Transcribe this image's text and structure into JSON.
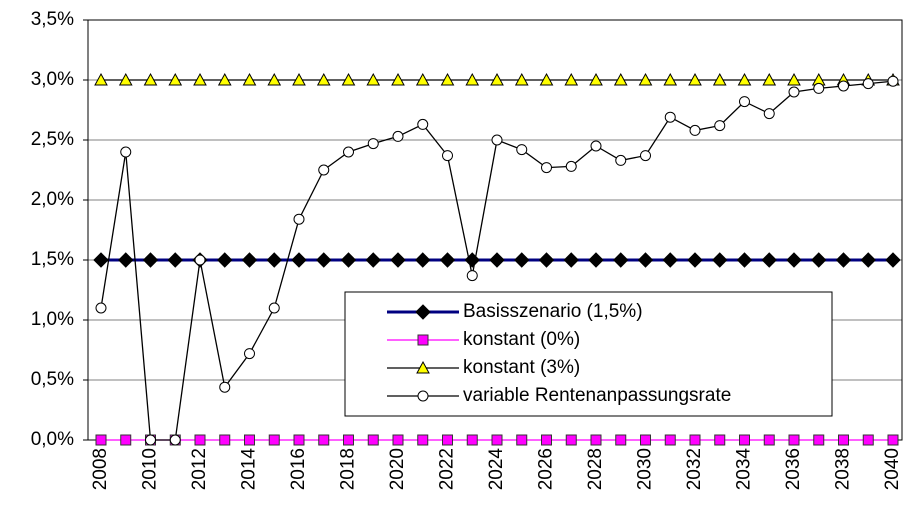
{
  "chart_data": {
    "type": "line",
    "categories": [
      "2008",
      null,
      "2010",
      null,
      "2012",
      null,
      "2014",
      null,
      "2016",
      null,
      "2018",
      null,
      "2020",
      null,
      "2022",
      null,
      "2024",
      null,
      "2026",
      null,
      "2028",
      null,
      "2030",
      null,
      "2032",
      null,
      "2034",
      null,
      "2036",
      null,
      "2038",
      null,
      "2040"
    ],
    "ylim": [
      0,
      3.5
    ],
    "yticks": [
      {
        "value": 0,
        "label": "0,0%"
      },
      {
        "value": 0.5,
        "label": "0,5%"
      },
      {
        "value": 1,
        "label": "1,0%"
      },
      {
        "value": 1.5,
        "label": "1,5%"
      },
      {
        "value": 2,
        "label": "2,0%"
      },
      {
        "value": 2.5,
        "label": "2,5%"
      },
      {
        "value": 3,
        "label": "3,0%"
      },
      {
        "value": 3.5,
        "label": "3,5%"
      }
    ],
    "grid": true,
    "series": [
      {
        "name": "Basisszenario (1,5%)",
        "color": "#000080",
        "marker": "diamond",
        "marker_color": "#000000",
        "values": [
          1.5,
          1.5,
          1.5,
          1.5,
          1.5,
          1.5,
          1.5,
          1.5,
          1.5,
          1.5,
          1.5,
          1.5,
          1.5,
          1.5,
          1.5,
          1.5,
          1.5,
          1.5,
          1.5,
          1.5,
          1.5,
          1.5,
          1.5,
          1.5,
          1.5,
          1.5,
          1.5,
          1.5,
          1.5,
          1.5,
          1.5,
          1.5,
          1.5
        ]
      },
      {
        "name": "konstant (0%)",
        "color": "#ff00ff",
        "marker": "square",
        "marker_color": "#ff00ff",
        "values": [
          0,
          0,
          0,
          0,
          0,
          0,
          0,
          0,
          0,
          0,
          0,
          0,
          0,
          0,
          0,
          0,
          0,
          0,
          0,
          0,
          0,
          0,
          0,
          0,
          0,
          0,
          0,
          0,
          0,
          0,
          0,
          0,
          0
        ]
      },
      {
        "name": "konstant (3%)",
        "color": "#000000",
        "marker": "triangle",
        "marker_color": "#ffff00",
        "values": [
          3,
          3,
          3,
          3,
          3,
          3,
          3,
          3,
          3,
          3,
          3,
          3,
          3,
          3,
          3,
          3,
          3,
          3,
          3,
          3,
          3,
          3,
          3,
          3,
          3,
          3,
          3,
          3,
          3,
          3,
          3,
          3,
          3
        ]
      },
      {
        "name": "variable Rentenanpassungsrate",
        "color": "#000000",
        "marker": "circle",
        "marker_color": "#ffffff",
        "values": [
          1.1,
          2.4,
          0,
          0,
          1.5,
          0.44,
          0.72,
          1.1,
          1.84,
          2.25,
          2.4,
          2.47,
          2.53,
          2.63,
          2.37,
          1.37,
          2.5,
          2.42,
          2.27,
          2.28,
          2.45,
          2.33,
          2.37,
          2.69,
          2.58,
          2.62,
          2.82,
          2.72,
          2.9,
          2.93,
          2.95,
          2.97,
          2.99
        ]
      }
    ],
    "legend": "lower-right"
  }
}
